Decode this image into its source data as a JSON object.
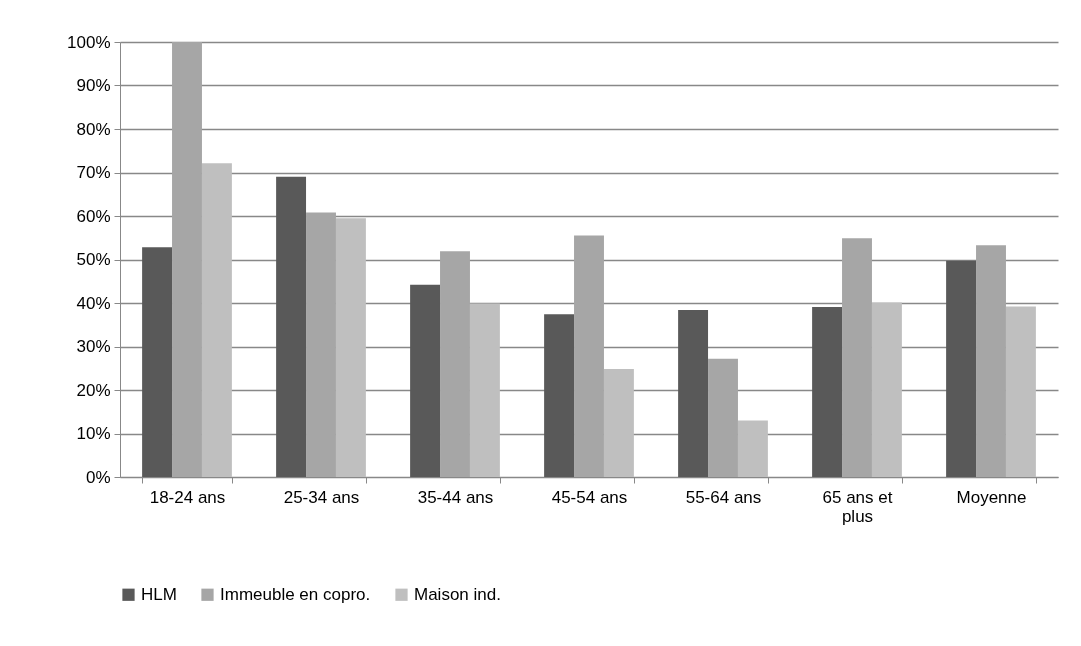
{
  "chart_data": {
    "type": "bar",
    "categories": [
      "18-24 ans",
      "25-34 ans",
      "35-44 ans",
      "45-54 ans",
      "55-64 ans",
      "65 ans et plus",
      "Moyenne"
    ],
    "series": [
      {
        "name": "HLM",
        "color": "#595959",
        "values": [
          52.8,
          69.0,
          44.2,
          37.4,
          38.4,
          39.1,
          49.7
        ]
      },
      {
        "name": "Immeuble en copro.",
        "color": "#a6a6a6",
        "values": [
          100,
          60.8,
          51.9,
          55.5,
          27.2,
          54.9,
          53.3
        ]
      },
      {
        "name": "Maison ind.",
        "color": "#bfbfbf",
        "values": [
          72.1,
          59.5,
          39.9,
          24.8,
          13.0,
          40.1,
          39.2
        ]
      }
    ],
    "ylim": [
      0,
      100
    ],
    "yticks": [
      {
        "value": 0,
        "label": "0%"
      },
      {
        "value": 10,
        "label": "10%"
      },
      {
        "value": 20,
        "label": "20%"
      },
      {
        "value": 30,
        "label": "30%"
      },
      {
        "value": 40,
        "label": "40%"
      },
      {
        "value": 50,
        "label": "50%"
      },
      {
        "value": 60,
        "label": "60%"
      },
      {
        "value": 70,
        "label": "70%"
      },
      {
        "value": 80,
        "label": "80%"
      },
      {
        "value": 90,
        "label": "90%"
      },
      {
        "value": 100,
        "label": "100%"
      }
    ],
    "grid": "y",
    "legend": "bottom"
  }
}
